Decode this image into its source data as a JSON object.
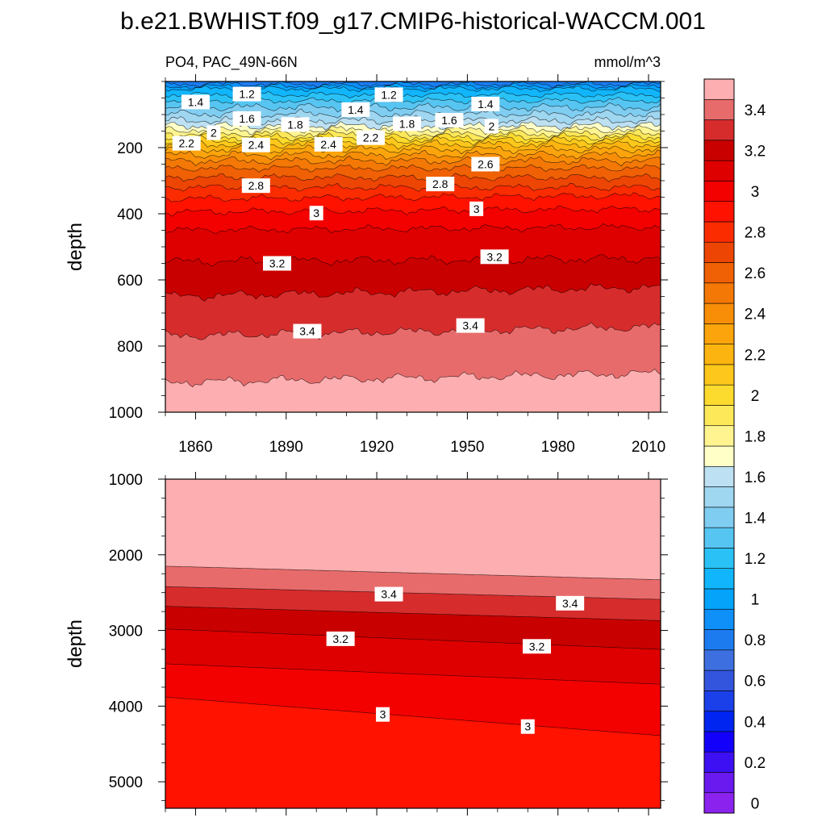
{
  "chart_data": {
    "type": "heatmap",
    "title": "b.e21.BWHIST.f09_g17.CMIP6-historical-WACCM.001",
    "subtitle_left": "PO4, PAC_49N-66N",
    "subtitle_right": "mmol/m^3",
    "variable": "PO4",
    "region": "PAC_49N-66N",
    "units": "mmol/m^3",
    "panels": [
      {
        "name": "upper",
        "xlabel": "",
        "ylabel": "depth",
        "xlim": [
          1850,
          2014
        ],
        "ylim": [
          1000,
          0
        ],
        "x_ticks": [
          1860,
          1890,
          1920,
          1950,
          1980,
          2010
        ],
        "y_ticks": [
          200,
          400,
          600,
          800,
          1000
        ],
        "contour_labels": [
          {
            "text": "1.4",
            "x": 1860,
            "y": 62
          },
          {
            "text": "1.2",
            "x": 1877,
            "y": 38
          },
          {
            "text": "1.2",
            "x": 1924,
            "y": 40
          },
          {
            "text": "1.4",
            "x": 1913,
            "y": 85
          },
          {
            "text": "1.4",
            "x": 1956,
            "y": 68
          },
          {
            "text": "1.6",
            "x": 1877,
            "y": 112
          },
          {
            "text": "1.8",
            "x": 1893,
            "y": 130
          },
          {
            "text": "1.8",
            "x": 1930,
            "y": 128
          },
          {
            "text": "1.6",
            "x": 1944,
            "y": 117
          },
          {
            "text": "2",
            "x": 1866,
            "y": 155
          },
          {
            "text": "2",
            "x": 1958,
            "y": 135
          },
          {
            "text": "2.2",
            "x": 1857,
            "y": 187
          },
          {
            "text": "2.2",
            "x": 1918,
            "y": 170
          },
          {
            "text": "2.4",
            "x": 1880,
            "y": 192
          },
          {
            "text": "2.4",
            "x": 1904,
            "y": 190
          },
          {
            "text": "2.6",
            "x": 1956,
            "y": 250
          },
          {
            "text": "2.8",
            "x": 1880,
            "y": 315
          },
          {
            "text": "2.8",
            "x": 1941,
            "y": 310
          },
          {
            "text": "3",
            "x": 1900,
            "y": 398
          },
          {
            "text": "3",
            "x": 1953,
            "y": 385
          },
          {
            "text": "3.2",
            "x": 1887,
            "y": 550
          },
          {
            "text": "3.2",
            "x": 1959,
            "y": 530
          },
          {
            "text": "3.4",
            "x": 1897,
            "y": 755
          },
          {
            "text": "3.4",
            "x": 1951,
            "y": 738
          }
        ]
      },
      {
        "name": "lower",
        "xlabel": "",
        "ylabel": "depth",
        "xlim": [
          1850,
          2014
        ],
        "ylim": [
          5350,
          1000
        ],
        "x_ticks": [
          1860,
          1890,
          1920,
          1950,
          1980,
          2010
        ],
        "y_ticks": [
          1000,
          2000,
          3000,
          4000,
          5000
        ],
        "contour_labels": [
          {
            "text": "3.4",
            "x": 1924,
            "y": 2520
          },
          {
            "text": "3.4",
            "x": 1984,
            "y": 2640
          },
          {
            "text": "3.2",
            "x": 1908,
            "y": 3110
          },
          {
            "text": "3.2",
            "x": 1973,
            "y": 3210
          },
          {
            "text": "3",
            "x": 1922,
            "y": 4110
          },
          {
            "text": "3",
            "x": 1970,
            "y": 4270
          }
        ]
      }
    ],
    "colorbar": {
      "levels": [
        0,
        0.1,
        0.2,
        0.3,
        0.4,
        0.5,
        0.6,
        0.7,
        0.8,
        0.9,
        1.0,
        1.1,
        1.2,
        1.3,
        1.4,
        1.5,
        1.6,
        1.7,
        1.8,
        1.9,
        2.0,
        2.1,
        2.2,
        2.3,
        2.4,
        2.5,
        2.6,
        2.7,
        2.8,
        2.9,
        3.0,
        3.1,
        3.2,
        3.3,
        3.4,
        3.5
      ],
      "labels": [
        "0",
        "0.2",
        "0.4",
        "0.6",
        "0.8",
        "1",
        "1.2",
        "1.4",
        "1.6",
        "1.8",
        "2",
        "2.2",
        "2.4",
        "2.6",
        "2.8",
        "3",
        "3.2",
        "3.4"
      ],
      "label_values": [
        0,
        0.2,
        0.4,
        0.6,
        0.8,
        1.0,
        1.2,
        1.4,
        1.6,
        1.8,
        2.0,
        2.2,
        2.4,
        2.6,
        2.8,
        3.0,
        3.2,
        3.4
      ],
      "colors": [
        "#8b22ee",
        "#6a19ef",
        "#3d10f3",
        "#1200fb",
        "#0025f0",
        "#1b3fe8",
        "#3355dd",
        "#3e6fe0",
        "#1d7bf0",
        "#0f8ff8",
        "#06a3fa",
        "#11b5fb",
        "#2ac2f6",
        "#57c5f2",
        "#80cdf2",
        "#9fd6f0",
        "#bde0f2",
        "#ffffc8",
        "#fff490",
        "#fde85a",
        "#fddb2e",
        "#fdc81b",
        "#fcb510",
        "#fba40c",
        "#f88e08",
        "#f47806",
        "#f06004",
        "#ed4504",
        "#fa2c00",
        "#ff1200",
        "#f30000",
        "#de0000",
        "#c90000",
        "#d72c2c",
        "#e86b6b",
        "#fcaeb0"
      ]
    }
  }
}
